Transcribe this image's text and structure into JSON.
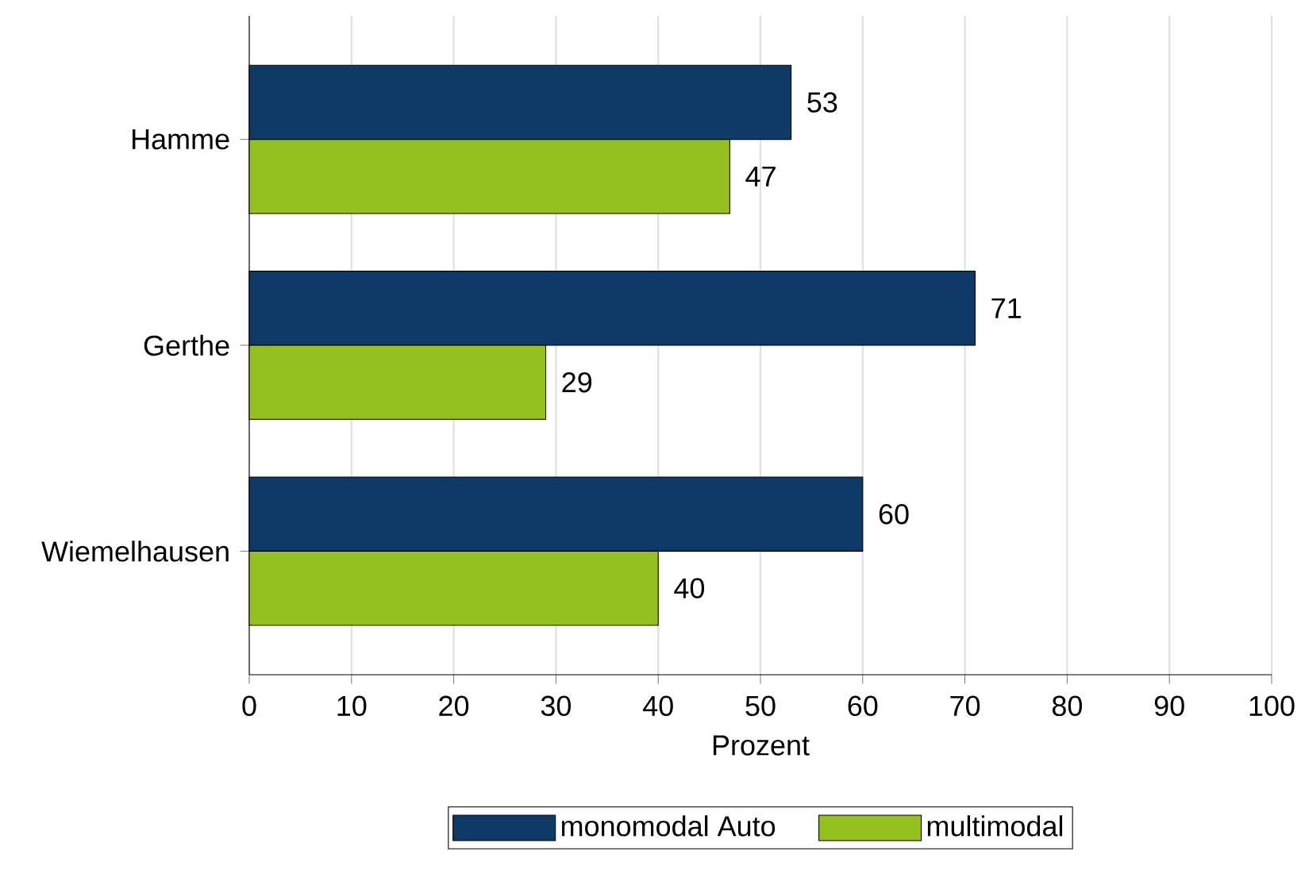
{
  "chart_data": {
    "type": "bar",
    "orientation": "horizontal",
    "xlabel": "Prozent",
    "categories": [
      "Hamme",
      "Gerthe",
      "Wiemelhausen"
    ],
    "series": [
      {
        "name": "monomodal Auto",
        "color": "#0d3a66",
        "values": [
          53,
          71,
          60
        ]
      },
      {
        "name": "multimodal",
        "color": "#95c11f",
        "values": [
          47,
          29,
          40
        ]
      }
    ],
    "xlim": [
      0,
      100
    ],
    "xticks": [
      0,
      10,
      20,
      30,
      40,
      50,
      60,
      70,
      80,
      90,
      100
    ],
    "grid": "x",
    "legend": "bottom",
    "data_labels": true
  }
}
